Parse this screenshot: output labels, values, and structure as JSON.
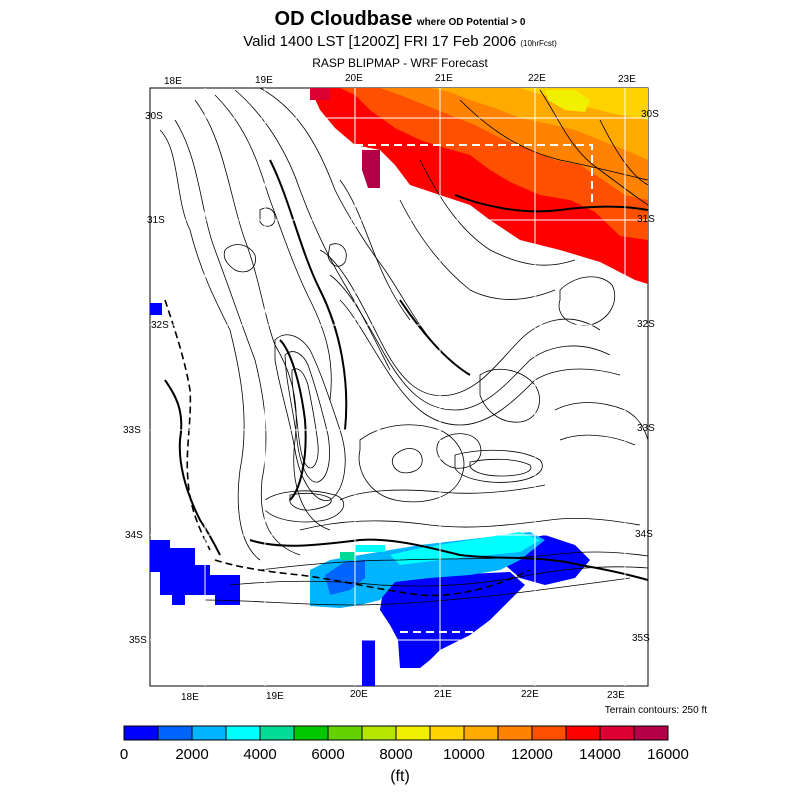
{
  "header": {
    "title": "OD Cloudbase",
    "title_note": "where OD Potential > 0",
    "valid": "Valid 1400 LST [1200Z] FRI 17 Feb 2006",
    "fcst": "(10hrFcst)",
    "subtitle": "RASP BLIPMAP - WRF Forecast"
  },
  "map": {
    "top_lon_labels": [
      "18E",
      "19E",
      "20E",
      "21E",
      "22E",
      "23E"
    ],
    "bottom_lon_labels": [
      "18E",
      "19E",
      "20E",
      "21E",
      "22E",
      "23E"
    ],
    "left_lat_labels": [
      "30S",
      "31S",
      "32S",
      "33S",
      "34S",
      "35S"
    ],
    "right_lat_labels": [
      "30S",
      "31S",
      "32S",
      "33S",
      "34S",
      "35S"
    ],
    "terrain_note": "Terrain contours: 250 ft"
  },
  "colorbar": {
    "ticks": [
      "0",
      "2000",
      "4000",
      "6000",
      "8000",
      "10000",
      "12000",
      "14000",
      "16000"
    ],
    "unit": "(ft)",
    "colors": [
      "#0000ff",
      "#0064ff",
      "#00b4ff",
      "#00ffff",
      "#00dc96",
      "#00c800",
      "#64d200",
      "#b4e600",
      "#f0f000",
      "#ffd200",
      "#ffaa00",
      "#ff8200",
      "#ff5000",
      "#ff0000",
      "#dc0032",
      "#b40046"
    ]
  }
}
